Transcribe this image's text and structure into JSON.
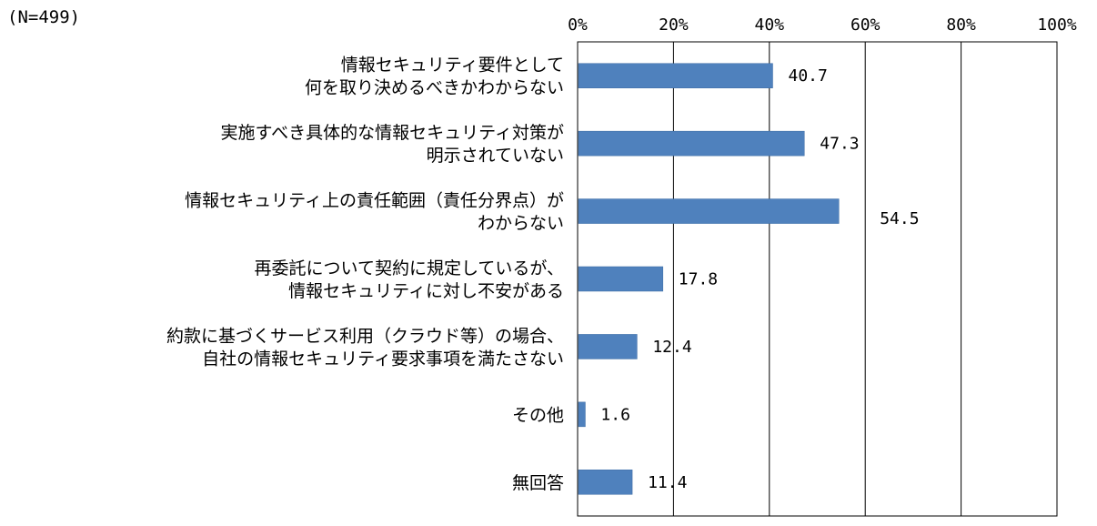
{
  "sample_size_label": "(N=499)",
  "colors": {
    "bar": "#4f81bd",
    "bar_stroke": "#3a6aa3",
    "grid": "#000000"
  },
  "chart_data": {
    "type": "bar",
    "orientation": "horizontal",
    "categories": [
      [
        "情報セキュリティ要件として",
        "何を取り決めるべきかわからない"
      ],
      [
        "実施すべき具体的な情報セキュリティ対策が",
        "明示されていない"
      ],
      [
        "情報セキュリティ上の責任範囲（責任分界点）が",
        "わからない"
      ],
      [
        "再委託について契約に規定しているが、",
        "情報セキュリティに対し不安がある"
      ],
      [
        "約款に基づくサービス利用（クラウド等）の場合、",
        "自社の情報セキュリティ要求事項を満たさない"
      ],
      [
        "その他"
      ],
      [
        "無回答"
      ]
    ],
    "values": [
      40.7,
      47.3,
      54.5,
      17.8,
      12.4,
      1.6,
      11.4
    ],
    "value_labels": [
      "40.7",
      "47.3",
      "54.5",
      "17.8",
      "12.4",
      "1.6",
      "11.4"
    ],
    "xlim": [
      0,
      100
    ],
    "x_ticks": [
      "0%",
      "20%",
      "40%",
      "60%",
      "80%",
      "100%"
    ],
    "grid": true
  }
}
